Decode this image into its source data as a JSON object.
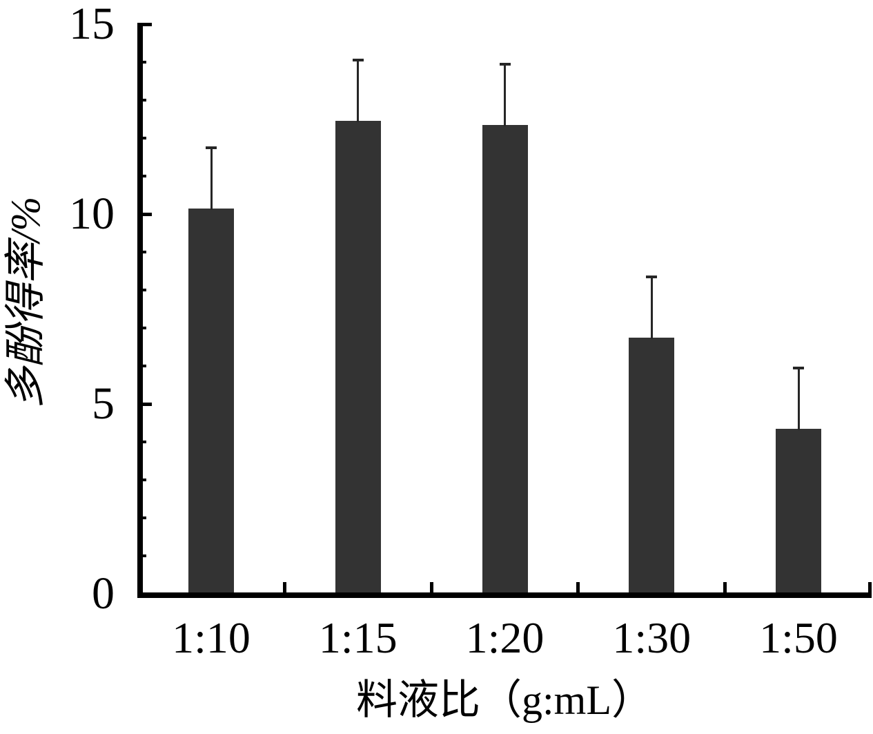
{
  "figure": {
    "background": "#ffffff"
  },
  "chart_data": {
    "type": "bar",
    "title": "",
    "categories": [
      "1:10",
      "1:15",
      "1:20",
      "1:30",
      "1:50"
    ],
    "values": [
      10.15,
      12.45,
      12.35,
      6.75,
      4.35
    ],
    "errors_plus": [
      1.6,
      1.6,
      1.6,
      1.6,
      1.6
    ],
    "xlabel": "料液比（g:mL）",
    "ylabel": "多酚得率/%",
    "ylim": [
      0,
      15
    ],
    "yticks_major": [
      0,
      5,
      10,
      15
    ],
    "ytick_labels": [
      "0",
      "5",
      "10",
      "15"
    ],
    "yminor_step": 1,
    "grid": false,
    "legend": "none",
    "errorbar_direction": "upper-only",
    "bar_color": "#333333",
    "axis_color": "#000000",
    "error_bar_color": "#262626",
    "text_color": "#000000"
  }
}
